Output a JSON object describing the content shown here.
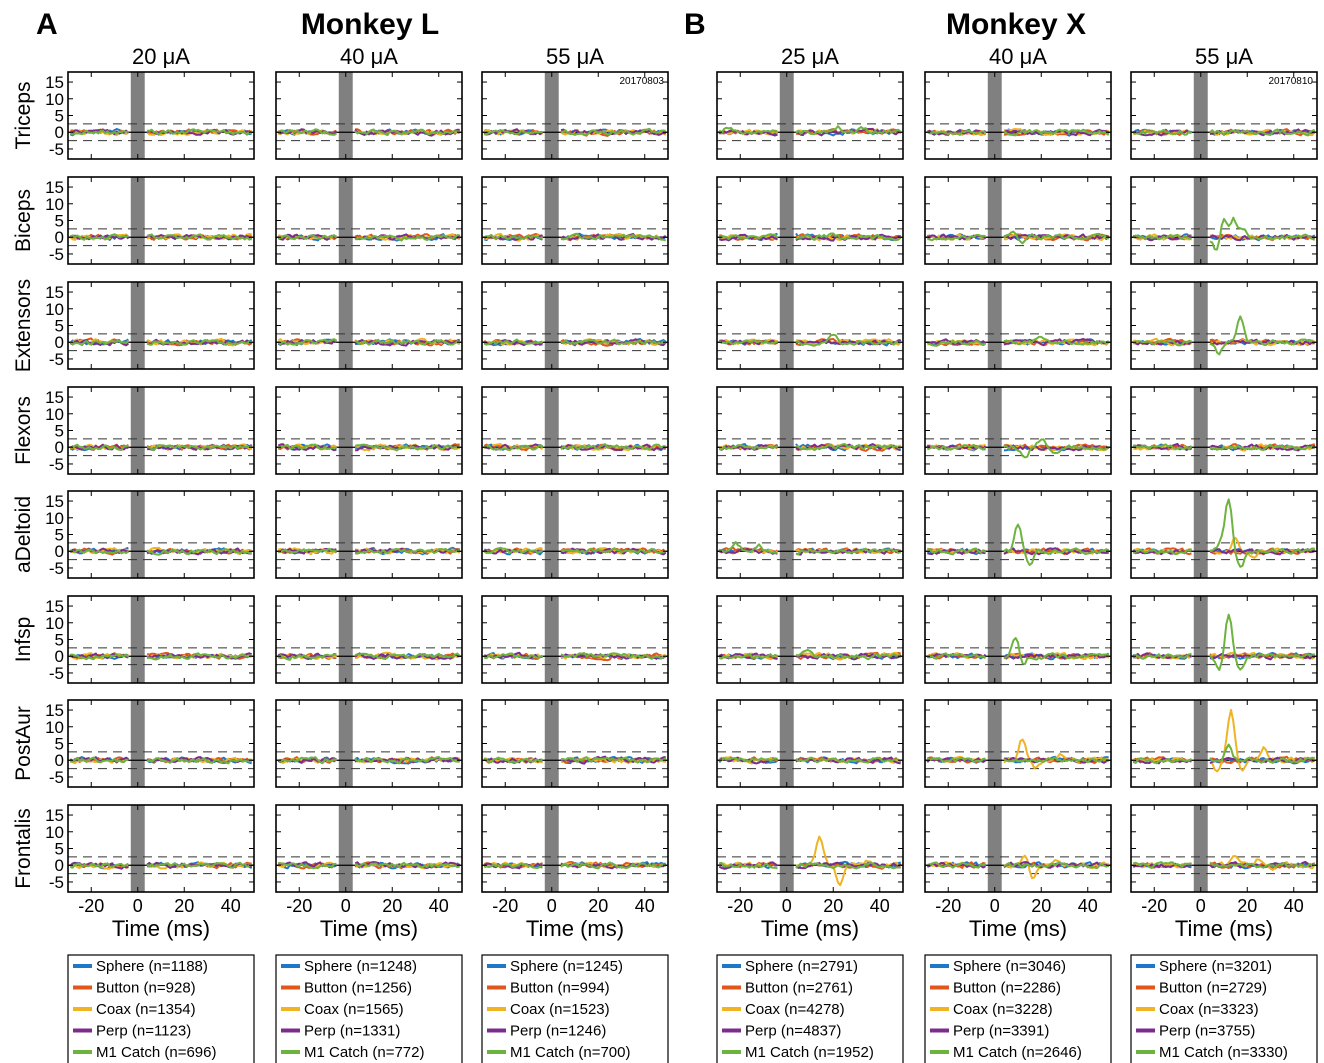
{
  "panels": [
    {
      "letter": "A",
      "title": "Monkey L"
    },
    {
      "letter": "B",
      "title": "Monkey X"
    }
  ],
  "rows": [
    "Triceps",
    "Biceps",
    "Extensors",
    "Flexors",
    "aDeltoid",
    "Infsp",
    "PostAur",
    "Frontalis"
  ],
  "xlabel": "Time (ms)",
  "colors": {
    "Sphere": "#1f77c8",
    "Button": "#e0561b",
    "Coax": "#f0b323",
    "Perp": "#7b2d8e",
    "M1 Catch": "#6db33f"
  },
  "chart_data": {
    "type": "line",
    "xlim": [
      -30,
      50
    ],
    "ylim": [
      -8,
      18
    ],
    "xticks": [
      -20,
      0,
      20,
      40
    ],
    "yticks": [
      -5,
      0,
      5,
      10,
      15
    ],
    "threshold_lines": [
      -2.5,
      2.5
    ],
    "stim_artifact_window_ms": [
      -3,
      3
    ],
    "columns": [
      {
        "current": "20 μA",
        "monkey": "Monkey L",
        "session": "",
        "counts": {
          "Sphere": 1188,
          "Button": 928,
          "Coax": 1354,
          "Perp": 1123,
          "M1 Catch": 696
        },
        "legend": [
          "Sphere (n=1188)",
          "Button (n=928)",
          "Coax (n=1354)",
          "Perp (n=1123)",
          "M1 Catch (n=696)"
        ]
      },
      {
        "current": "40 μA",
        "monkey": "Monkey L",
        "session": "",
        "counts": {
          "Sphere": 1248,
          "Button": 1256,
          "Coax": 1565,
          "Perp": 1331,
          "M1 Catch": 772
        },
        "legend": [
          "Sphere (n=1248)",
          "Button (n=1256)",
          "Coax (n=1565)",
          "Perp (n=1331)",
          "M1 Catch (n=772)"
        ]
      },
      {
        "current": "55 μA",
        "monkey": "Monkey L",
        "session": "20170803",
        "counts": {
          "Sphere": 1245,
          "Button": 994,
          "Coax": 1523,
          "Perp": 1246,
          "M1 Catch": 700
        },
        "legend": [
          "Sphere (n=1245)",
          "Button (n=994)",
          "Coax (n=1523)",
          "Perp (n=1246)",
          "M1 Catch (n=700)"
        ]
      },
      {
        "current": "25 μA",
        "monkey": "Monkey X",
        "session": "",
        "counts": {
          "Sphere": 2791,
          "Button": 2761,
          "Coax": 4278,
          "Perp": 4837,
          "M1 Catch": 1952
        },
        "legend": [
          "Sphere (n=2791)",
          "Button (n=2761)",
          "Coax (n=4278)",
          "Perp (n=4837)",
          "M1 Catch (n=1952)"
        ]
      },
      {
        "current": "40 μA",
        "monkey": "Monkey X",
        "session": "",
        "counts": {
          "Sphere": 3046,
          "Button": 2286,
          "Coax": 3228,
          "Perp": 3391,
          "M1 Catch": 2646
        },
        "legend": [
          "Sphere (n=3046)",
          "Button (n=2286)",
          "Coax (n=3228)",
          "Perp (n=3391)",
          "M1 Catch (n=2646)"
        ]
      },
      {
        "current": "55 μA",
        "monkey": "Monkey X",
        "session": "20170810",
        "counts": {
          "Sphere": 3201,
          "Button": 2729,
          "Coax": 3323,
          "Perp": 3755,
          "M1 Catch": 3330
        },
        "legend": [
          "Sphere (n=3201)",
          "Button (n=2729)",
          "Coax (n=3323)",
          "Perp (n=3755)",
          "M1 Catch (n=3330)"
        ]
      }
    ],
    "series": [
      "Sphere",
      "Button",
      "Coax",
      "Perp",
      "M1 Catch"
    ],
    "baseline_noise_amplitude": 0.8,
    "responses": [
      {
        "column": 3,
        "row": "Triceps",
        "series": "M1 Catch",
        "peaks": [
          [
            -25,
            1.5
          ],
          [
            22,
            1.5
          ],
          [
            33,
            1.0
          ]
        ]
      },
      {
        "column": 3,
        "row": "Biceps",
        "series": "M1 Catch",
        "peaks": [
          [
            20,
            1.5
          ]
        ]
      },
      {
        "column": 3,
        "row": "Extensors",
        "series": "M1 Catch",
        "peaks": [
          [
            20,
            2.5
          ]
        ]
      },
      {
        "column": 3,
        "row": "aDeltoid",
        "series": "M1 Catch",
        "peaks": [
          [
            -22,
            2.5
          ],
          [
            -12,
            1.5
          ]
        ]
      },
      {
        "column": 3,
        "row": "Infsp",
        "series": "M1 Catch",
        "peaks": [
          [
            9,
            2.5
          ]
        ]
      },
      {
        "column": 3,
        "row": "Frontalis",
        "series": "Coax",
        "peaks": [
          [
            14,
            9.0
          ],
          [
            23,
            -6.5
          ],
          [
            35,
            1.5
          ]
        ]
      },
      {
        "column": 4,
        "row": "Biceps",
        "series": "M1 Catch",
        "peaks": [
          [
            8,
            1.5
          ],
          [
            12,
            -2.5
          ]
        ]
      },
      {
        "column": 4,
        "row": "Extensors",
        "series": "M1 Catch",
        "peaks": [
          [
            20,
            2.0
          ]
        ]
      },
      {
        "column": 4,
        "row": "Flexors",
        "series": "M1 Catch",
        "peaks": [
          [
            13,
            -2.5
          ],
          [
            20,
            2.0
          ],
          [
            27,
            -2.0
          ]
        ]
      },
      {
        "column": 4,
        "row": "aDeltoid",
        "series": "M1 Catch",
        "peaks": [
          [
            10,
            8.5
          ],
          [
            15,
            -4.5
          ]
        ]
      },
      {
        "column": 4,
        "row": "Infsp",
        "series": "M1 Catch",
        "peaks": [
          [
            9,
            6.5
          ],
          [
            12,
            -3.0
          ]
        ]
      },
      {
        "column": 4,
        "row": "PostAur",
        "series": "Coax",
        "peaks": [
          [
            12,
            6.5
          ],
          [
            18,
            -2.5
          ],
          [
            28,
            2.0
          ]
        ]
      },
      {
        "column": 4,
        "row": "Frontalis",
        "series": "Coax",
        "peaks": [
          [
            13,
            4.0
          ],
          [
            16,
            -3.5
          ],
          [
            27,
            1.0
          ]
        ]
      },
      {
        "column": 5,
        "row": "Biceps",
        "series": "M1 Catch",
        "peaks": [
          [
            7,
            -4.0
          ],
          [
            10,
            5.5
          ],
          [
            14,
            5.5
          ],
          [
            18,
            3.0
          ]
        ]
      },
      {
        "column": 5,
        "row": "Extensors",
        "series": "M1 Catch",
        "peaks": [
          [
            8,
            -3.0
          ],
          [
            17,
            8.5
          ]
        ]
      },
      {
        "column": 5,
        "row": "aDeltoid",
        "series": "M1 Catch",
        "peaks": [
          [
            9,
            3.0
          ],
          [
            12,
            15.0
          ],
          [
            17,
            -5.0
          ]
        ]
      },
      {
        "column": 5,
        "row": "aDeltoid",
        "series": "Coax",
        "peaks": [
          [
            15,
            4.0
          ],
          [
            22,
            -2.5
          ]
        ]
      },
      {
        "column": 5,
        "row": "Infsp",
        "series": "M1 Catch",
        "peaks": [
          [
            8,
            -4.0
          ],
          [
            12,
            12.0
          ],
          [
            17,
            -4.5
          ]
        ]
      },
      {
        "column": 5,
        "row": "PostAur",
        "series": "Coax",
        "peaks": [
          [
            7,
            -3.0
          ],
          [
            13,
            15.0
          ],
          [
            18,
            -3.0
          ],
          [
            27,
            4.0
          ]
        ]
      },
      {
        "column": 5,
        "row": "PostAur",
        "series": "M1 Catch",
        "peaks": [
          [
            12,
            4.0
          ]
        ]
      },
      {
        "column": 5,
        "row": "Frontalis",
        "series": "Coax",
        "peaks": [
          [
            14,
            3.0
          ],
          [
            25,
            2.0
          ],
          [
            30,
            -1.5
          ]
        ]
      }
    ]
  }
}
